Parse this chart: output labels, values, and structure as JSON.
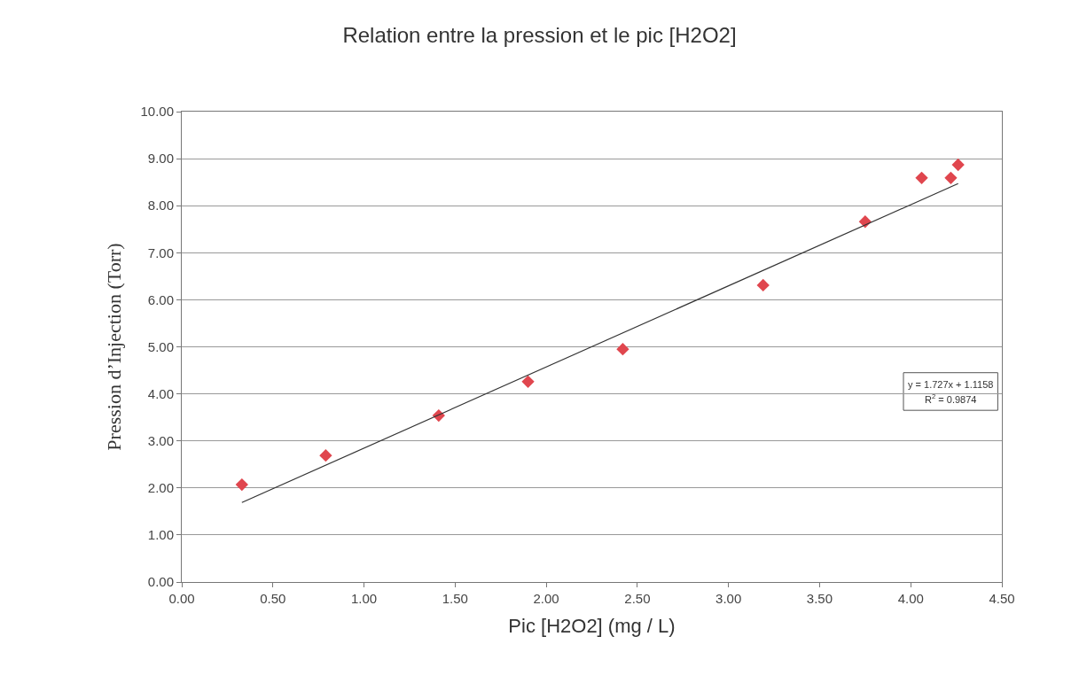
{
  "chart_data": {
    "type": "scatter",
    "title": "Relation entre la pression et le pic [H2O2]",
    "xlabel": "Pic [H2O2] (mg / L)",
    "ylabel": "Pression d’Injection (Torr)",
    "series": [
      {
        "color": "#e0464e",
        "marker": "diamond",
        "x": [
          0.33,
          0.79,
          1.41,
          1.9,
          2.42,
          3.19,
          3.75,
          4.06,
          4.22,
          4.26
        ],
        "values": [
          2.07,
          2.69,
          3.54,
          4.26,
          4.95,
          6.31,
          7.66,
          8.59,
          8.59,
          8.87
        ]
      },
      {
        "type": "line",
        "color": "#333333",
        "marker": "none",
        "x": [
          0.33,
          4.26
        ],
        "values": [
          1.69,
          8.47
        ]
      }
    ],
    "annotations": [
      "y = 1.727x + 1.1158",
      "R$^{2}$ = 0.9874"
    ],
    "xlim": [
      0,
      4.5
    ],
    "xticks": [
      {
        "value": 0,
        "label": "0.00"
      },
      {
        "value": 0.5,
        "label": "0.50"
      },
      {
        "value": 1,
        "label": "1.00"
      },
      {
        "value": 1.5,
        "label": "1.50"
      },
      {
        "value": 2,
        "label": "2.00"
      },
      {
        "value": 2.5,
        "label": "2.50"
      },
      {
        "value": 3,
        "label": "3.00"
      },
      {
        "value": 3.5,
        "label": "3.50"
      },
      {
        "value": 4,
        "label": "4.00"
      },
      {
        "value": 4.5,
        "label": "4.50"
      }
    ],
    "ylim": [
      0,
      10
    ],
    "yticks": [
      {
        "value": 0,
        "label": "0.00"
      },
      {
        "value": 1,
        "label": "1.00"
      },
      {
        "value": 2,
        "label": "2.00"
      },
      {
        "value": 3,
        "label": "3.00"
      },
      {
        "value": 4,
        "label": "4.00"
      },
      {
        "value": 5,
        "label": "5.00"
      },
      {
        "value": 6,
        "label": "6.00"
      },
      {
        "value": 7,
        "label": "7.00"
      },
      {
        "value": 8,
        "label": "8.00"
      },
      {
        "value": 9,
        "label": "9.00"
      },
      {
        "value": 10,
        "label": "10.00"
      }
    ],
    "grid": "y"
  }
}
